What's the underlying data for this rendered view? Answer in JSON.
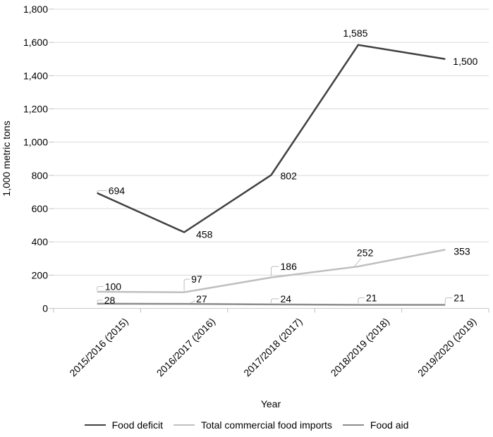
{
  "chart_data": {
    "type": "line",
    "title": "",
    "xlabel": "Year",
    "ylabel": "1,000 metric tons",
    "categories": [
      "2015/2016 (2015)",
      "2016/2017 (2016)",
      "2017/2018 (2017)",
      "2018/2019 (2018)",
      "2019/2020 (2019)"
    ],
    "series": [
      {
        "name": "Food deficit",
        "color": "#404040",
        "values": [
          694,
          458,
          802,
          1585,
          1500
        ],
        "point_labels": [
          "694",
          "458",
          "802",
          "1,585",
          "1,500"
        ]
      },
      {
        "name": "Total commercial food imports",
        "color": "#bfbfbf",
        "values": [
          100,
          97,
          186,
          252,
          353
        ],
        "point_labels": [
          "100",
          "97",
          "186",
          "252",
          "353"
        ]
      },
      {
        "name": "Food aid",
        "color": "#8c8c8c",
        "values": [
          28,
          27,
          24,
          21,
          21
        ],
        "point_labels": [
          "28",
          "27",
          "24",
          "21",
          "21"
        ]
      }
    ],
    "ylim": [
      0,
      1800
    ],
    "ytick_step": 200,
    "ytick_labels": [
      "0",
      "200",
      "400",
      "600",
      "800",
      "1,000",
      "1,200",
      "1,400",
      "1,600",
      "1,800"
    ],
    "grid": true,
    "legend_position": "bottom"
  },
  "colors": {
    "gridline": "#d9d9d9",
    "axis_line": "#c9c9c9",
    "tick": "#bfbfbf",
    "leader": "#bfbfbf",
    "text": "#000000",
    "background": "#ffffff"
  }
}
